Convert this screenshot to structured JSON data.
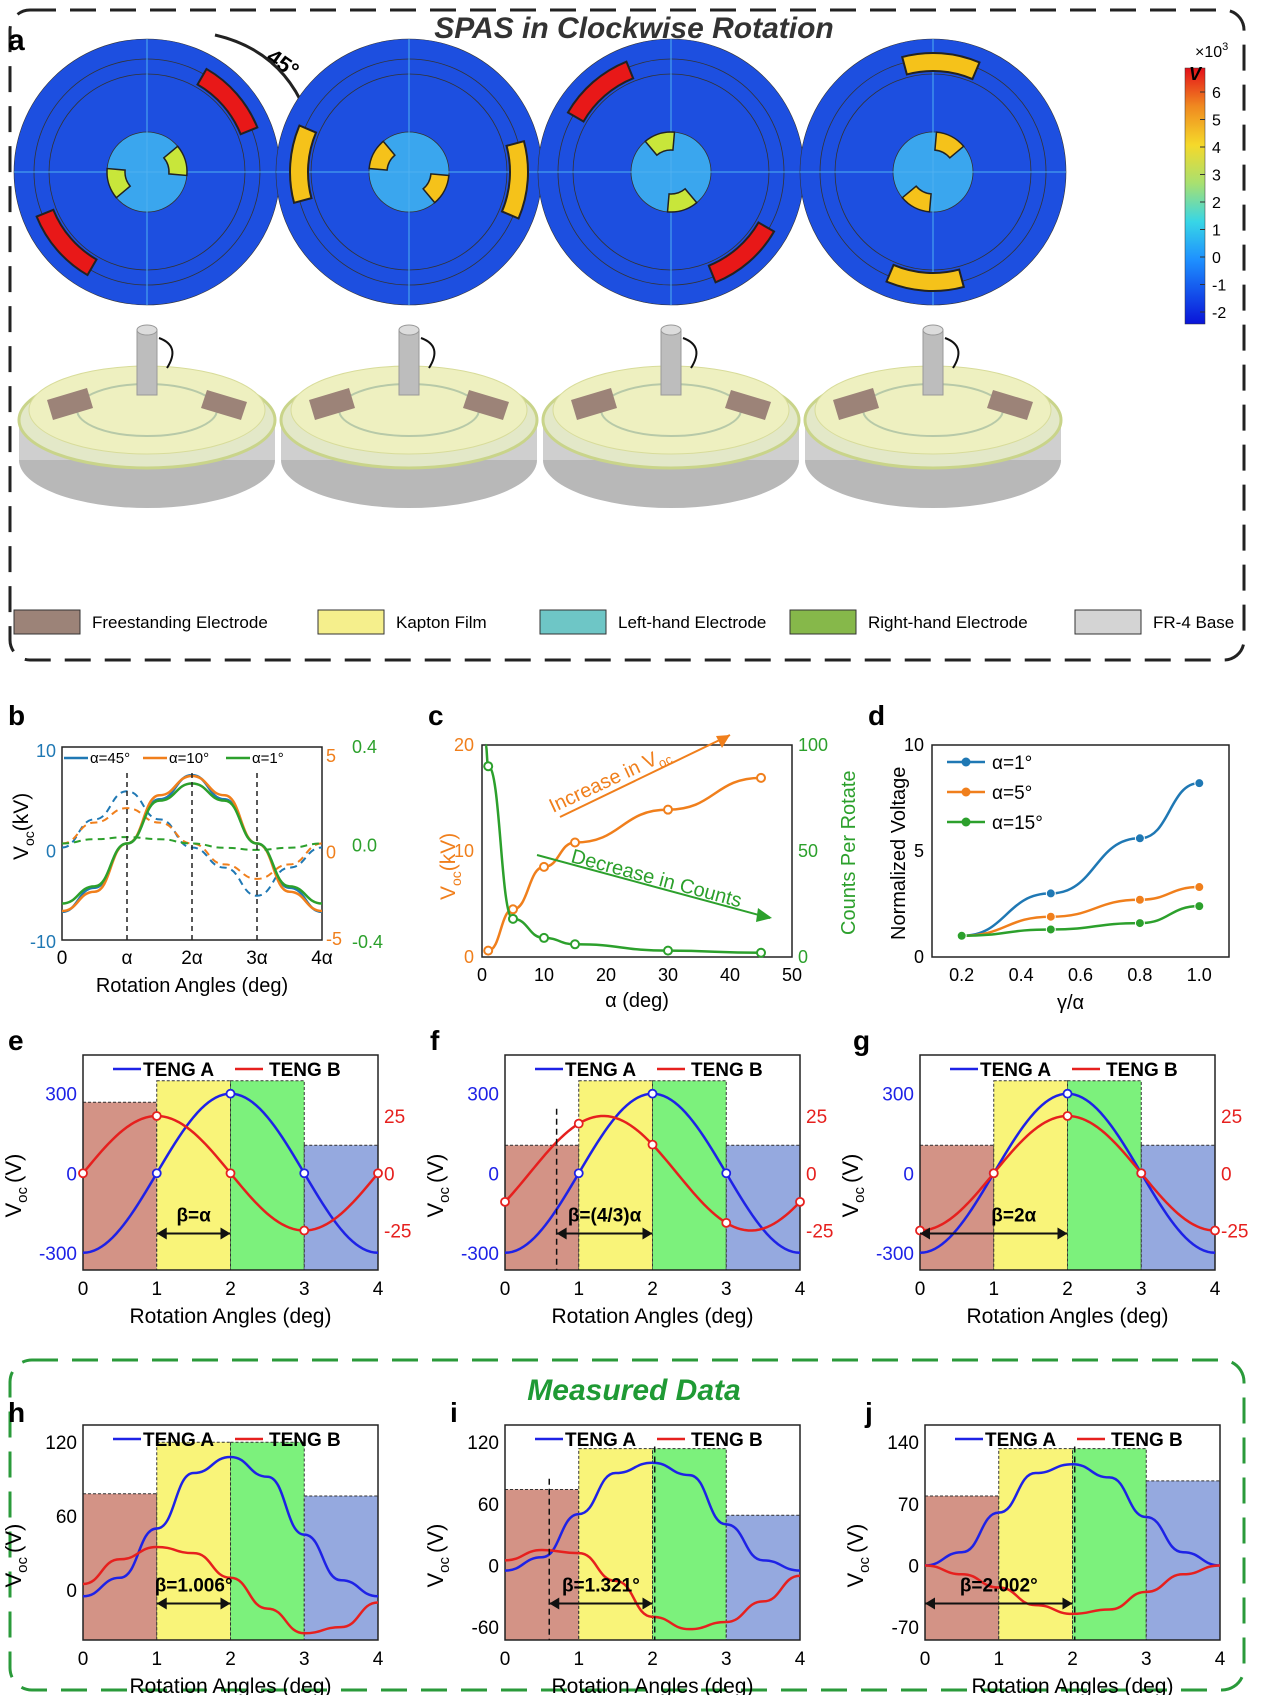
{
  "panel_a": {
    "letter": "a",
    "title": "SPAS in Clockwise Rotation",
    "rotation_label": "45°",
    "colorbar": {
      "multiplier": "×10",
      "exponent": "3",
      "unit": "V",
      "ticks": [
        "6",
        "5",
        "4",
        "3",
        "2",
        "1",
        "0",
        "-1",
        "-2"
      ]
    },
    "legend": [
      {
        "label": "Freestanding Electrode",
        "color": "#9c8378"
      },
      {
        "label": "Kapton Film",
        "color": "#f5ef8c"
      },
      {
        "label": "Left-hand Electrode",
        "color": "#6ec6c6"
      },
      {
        "label": "Right-hand Electrode",
        "color": "#86b84a"
      },
      {
        "label": "FR-4 Base",
        "color": "#d4d4d4"
      }
    ]
  },
  "measured_label": "Measured Data",
  "colors": {
    "teng_a": "#1e22e6",
    "teng_b": "#e6201e",
    "blue45": "#1f78b4",
    "orange": "#f07f1c",
    "green": "#2ca02c",
    "dash_gray": "#333333"
  },
  "chart_data": [
    {
      "id": "b",
      "letter": "b",
      "type": "line",
      "xlabel": "Rotation Angles (deg)",
      "xticks": [
        "0",
        "α",
        "2α",
        "3α",
        "4α"
      ],
      "ylabel": "V",
      "ylabel_sub": "oc",
      "ylabel_unit": "(kV)",
      "legend": [
        "α=45°",
        "α=10°",
        "α=1°"
      ],
      "axis_left": {
        "ticks": [
          "10",
          "0",
          "-10"
        ],
        "color": "#1f78b4"
      },
      "axis_right1": {
        "ticks": [
          "5",
          "0",
          "-5"
        ],
        "color": "#f07f1c"
      },
      "axis_right2": {
        "ticks": [
          "0.4",
          "0.0",
          "-0.4"
        ],
        "color": "#2ca02c"
      },
      "series": [
        {
          "name": "α=45°",
          "x": [
            0,
            0.5,
            1,
            1.5,
            2,
            2.5,
            3,
            3.5,
            4
          ],
          "y": [
            -8.5,
            -5.5,
            0,
            5.5,
            8.5,
            5.5,
            0,
            -5.5,
            -8.5
          ],
          "dashed": [
            -0.5,
            3,
            6.5,
            3,
            -0.5,
            -3,
            -6.5,
            -3,
            -0.5
          ]
        },
        {
          "name": "α=10°",
          "x": [
            0,
            0.5,
            1,
            1.5,
            2,
            2.5,
            3,
            3.5,
            4
          ],
          "y": [
            -4.2,
            -3,
            0,
            3,
            4.2,
            3,
            0,
            -3,
            -4.2
          ],
          "dashed": [
            0,
            1.3,
            2.2,
            1.3,
            0,
            -1.3,
            -2.2,
            -1.3,
            0
          ]
        },
        {
          "name": "α=1°",
          "x": [
            0,
            0.5,
            1,
            1.5,
            2,
            2.5,
            3,
            3.5,
            4
          ],
          "y": [
            -0.28,
            -0.2,
            0,
            0.2,
            0.28,
            0.2,
            0,
            -0.2,
            -0.28
          ],
          "dashed": [
            0,
            0.02,
            0.03,
            0.02,
            0,
            -0.02,
            -0.03,
            -0.02,
            0
          ]
        }
      ]
    },
    {
      "id": "c",
      "letter": "c",
      "type": "line",
      "xlabel": "α (deg)",
      "xticks": [
        "0",
        "10",
        "20",
        "30",
        "40",
        "50"
      ],
      "ylabel_left": "V",
      "ylabel_left_sub": "oc",
      "ylabel_left_unit": "(kV)",
      "ylabel_right": "Counts Per Rotate",
      "yticks_left": [
        "0",
        "10",
        "20"
      ],
      "yticks_right": [
        "0",
        "50",
        "100"
      ],
      "annotations": [
        "Increase in V",
        "oc",
        "Decrease in Counts"
      ],
      "series": [
        {
          "name": "Voc",
          "axis": "left",
          "x": [
            1,
            5,
            10,
            15,
            30,
            45
          ],
          "y": [
            0.6,
            4.5,
            8.5,
            10.8,
            13.9,
            16.9
          ]
        },
        {
          "name": "Counts",
          "axis": "right",
          "x": [
            1,
            5,
            10,
            15,
            30,
            45
          ],
          "y": [
            90,
            18,
            9,
            6,
            3,
            2
          ]
        }
      ]
    },
    {
      "id": "d",
      "letter": "d",
      "type": "line",
      "xlabel": "γ/α",
      "ylabel": "Normalized Voltage",
      "xticks": [
        "0.2",
        "0.4",
        "0.6",
        "0.8",
        "1.0"
      ],
      "yticks": [
        "0",
        "5",
        "10"
      ],
      "legend": [
        "α=1°",
        "α=5°",
        "α=15°"
      ],
      "series": [
        {
          "name": "α=1°",
          "x": [
            0.2,
            0.5,
            0.8,
            1.0
          ],
          "y": [
            1.0,
            3.0,
            5.6,
            8.2
          ]
        },
        {
          "name": "α=5°",
          "x": [
            0.2,
            0.5,
            0.8,
            1.0
          ],
          "y": [
            1.0,
            1.9,
            2.7,
            3.3
          ]
        },
        {
          "name": "α=15°",
          "x": [
            0.2,
            0.5,
            0.8,
            1.0
          ],
          "y": [
            1.0,
            1.3,
            1.6,
            2.4
          ]
        }
      ]
    },
    {
      "id": "e",
      "letter": "e",
      "type": "line",
      "beta": "β=α",
      "xlabel": "Rotation Angles (deg)",
      "ylabel": "V",
      "ylabel_sub": "oc",
      "ylabel_unit": "(V)",
      "xticks": [
        "0",
        "1",
        "2",
        "3",
        "4"
      ],
      "yticks_left": [
        "300",
        "0",
        "-300"
      ],
      "yticks_right": [
        "25",
        "0",
        "-25"
      ],
      "legend": [
        "TENG A",
        "TENG B"
      ],
      "series": [
        {
          "name": "TENG A",
          "phase": 0
        },
        {
          "name": "TENG B",
          "phase": 1
        }
      ]
    },
    {
      "id": "f",
      "letter": "f",
      "type": "line",
      "beta": "β=(4/3)α",
      "xlabel": "Rotation Angles (deg)",
      "ylabel": "V",
      "ylabel_sub": "oc",
      "ylabel_unit": "(V)",
      "xticks": [
        "0",
        "1",
        "2",
        "3",
        "4"
      ],
      "yticks_left": [
        "300",
        "0",
        "-300"
      ],
      "yticks_right": [
        "25",
        "0",
        "-25"
      ],
      "legend": [
        "TENG A",
        "TENG B"
      ],
      "series": [
        {
          "name": "TENG A",
          "phase": 0
        },
        {
          "name": "TENG B",
          "phase": 1.333
        }
      ]
    },
    {
      "id": "g",
      "letter": "g",
      "type": "line",
      "beta": "β=2α",
      "xlabel": "Rotation Angles (deg)",
      "ylabel": "V",
      "ylabel_sub": "oc",
      "ylabel_unit": "(V)",
      "xticks": [
        "0",
        "1",
        "2",
        "3",
        "4"
      ],
      "yticks_left": [
        "300",
        "0",
        "-300"
      ],
      "yticks_right": [
        "25",
        "0",
        "-25"
      ],
      "legend": [
        "TENG A",
        "TENG B"
      ],
      "series": [
        {
          "name": "TENG A",
          "phase": 0
        },
        {
          "name": "TENG B",
          "phase": 2
        }
      ]
    },
    {
      "id": "h",
      "letter": "h",
      "type": "line",
      "beta": "β=1.006°",
      "xlabel": "Rotation Angles (deg)",
      "ylabel": "V",
      "ylabel_sub": "oc",
      "ylabel_unit": "(V)",
      "xticks": [
        "0",
        "1",
        "2",
        "3",
        "4"
      ],
      "yticks": [
        "120",
        "60",
        "0"
      ],
      "legend": [
        "TENG A",
        "TENG B"
      ],
      "series": [
        {
          "name": "TENG A",
          "x": [
            0,
            0.5,
            1,
            1.5,
            2,
            2.5,
            3,
            3.5,
            4
          ],
          "y": [
            -5,
            10,
            50,
            95,
            108,
            92,
            45,
            8,
            -5
          ]
        },
        {
          "name": "TENG B",
          "x": [
            0,
            0.5,
            1,
            1.5,
            2,
            2.5,
            3,
            3.5,
            4
          ],
          "y": [
            5,
            25,
            35,
            30,
            10,
            -15,
            -35,
            -30,
            -10
          ]
        }
      ]
    },
    {
      "id": "i",
      "letter": "i",
      "type": "line",
      "beta": "β=1.321°",
      "xlabel": "Rotation Angles (deg)",
      "ylabel": "V",
      "ylabel_sub": "oc",
      "ylabel_unit": "(V)",
      "xticks": [
        "0",
        "1",
        "2",
        "3",
        "4"
      ],
      "yticks": [
        "120",
        "60",
        "0",
        "-60"
      ],
      "legend": [
        "TENG A",
        "TENG B"
      ],
      "series": [
        {
          "name": "TENG A",
          "x": [
            0,
            0.5,
            1,
            1.5,
            2,
            2.5,
            3,
            3.5,
            4
          ],
          "y": [
            -5,
            8,
            50,
            90,
            100,
            88,
            40,
            5,
            -5
          ]
        },
        {
          "name": "TENG B",
          "x": [
            0,
            0.5,
            1,
            1.5,
            2,
            2.5,
            3,
            3.5,
            4
          ],
          "y": [
            5,
            15,
            12,
            -15,
            -50,
            -62,
            -55,
            -35,
            -10
          ]
        }
      ]
    },
    {
      "id": "j",
      "letter": "j",
      "type": "line",
      "beta": "β=2.002°",
      "xlabel": "Rotation Angles (deg)",
      "ylabel": "V",
      "ylabel_sub": "oc",
      "ylabel_unit": "(V)",
      "xticks": [
        "0",
        "1",
        "2",
        "3",
        "4"
      ],
      "yticks": [
        "140",
        "70",
        "0",
        "-70"
      ],
      "legend": [
        "TENG A",
        "TENG B"
      ],
      "series": [
        {
          "name": "TENG A",
          "x": [
            0,
            0.5,
            1,
            1.5,
            2,
            2.5,
            3,
            3.5,
            4
          ],
          "y": [
            0,
            15,
            60,
            105,
            115,
            100,
            55,
            15,
            0
          ]
        },
        {
          "name": "TENG B",
          "x": [
            0,
            0.5,
            1,
            1.5,
            2,
            2.5,
            3,
            3.5,
            4
          ],
          "y": [
            0,
            -10,
            -25,
            -45,
            -55,
            -50,
            -30,
            -10,
            0
          ]
        }
      ]
    }
  ]
}
